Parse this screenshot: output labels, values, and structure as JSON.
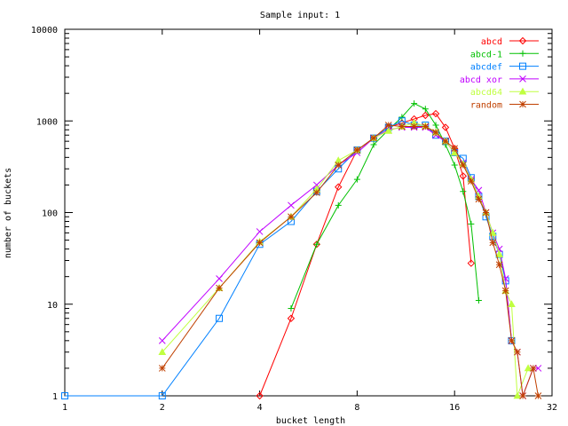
{
  "chart_data": {
    "type": "line",
    "title": "Sample input: 1",
    "xlabel": "bucket length",
    "ylabel": "number of buckets",
    "xscale": "log2",
    "yscale": "log10",
    "xlim": [
      1,
      32
    ],
    "ylim": [
      1,
      10000
    ],
    "xticks": [
      "1",
      "2",
      "4",
      "8",
      "16",
      "32"
    ],
    "yticks": [
      "1",
      "10",
      "100",
      "1000",
      "10000"
    ],
    "grid": false,
    "legend_position": "top-right",
    "series": [
      {
        "name": "abcd",
        "color": "#ff0000",
        "marker": "diamond",
        "x": [
          4,
          5,
          6,
          7,
          8,
          9,
          10,
          11,
          12,
          13,
          14,
          15,
          16,
          17,
          18
        ],
        "y": [
          1,
          7,
          45,
          190,
          480,
          650,
          850,
          950,
          1050,
          1150,
          1200,
          850,
          500,
          250,
          28
        ]
      },
      {
        "name": "abcd-1",
        "color": "#00c000",
        "marker": "plus",
        "x": [
          5,
          6,
          7,
          8,
          9,
          10,
          11,
          12,
          13,
          14,
          15,
          16,
          17,
          18,
          19
        ],
        "y": [
          9,
          45,
          120,
          230,
          550,
          800,
          1100,
          1550,
          1350,
          900,
          550,
          330,
          170,
          75,
          11
        ]
      },
      {
        "name": "abcdef",
        "color": "#0080ff",
        "marker": "square",
        "x": [
          1,
          2,
          3,
          4,
          5,
          6,
          7,
          8,
          9,
          10,
          11,
          12,
          13,
          14,
          15,
          16,
          17,
          18,
          19,
          20,
          21,
          22,
          23,
          24
        ],
        "y": [
          1,
          1,
          7,
          45,
          80,
          170,
          300,
          480,
          650,
          850,
          1000,
          900,
          900,
          700,
          600,
          450,
          390,
          240,
          150,
          90,
          55,
          35,
          18,
          4
        ]
      },
      {
        "name": "abcd xor",
        "color": "#c000ff",
        "marker": "cross",
        "x": [
          2,
          3,
          4,
          5,
          6,
          7,
          8,
          9,
          10,
          11,
          12,
          13,
          14,
          15,
          16,
          17,
          18,
          19,
          20,
          21,
          22,
          23,
          24,
          25,
          26,
          28,
          29
        ],
        "y": [
          4,
          19,
          62,
          120,
          200,
          330,
          450,
          650,
          800,
          850,
          850,
          850,
          700,
          600,
          450,
          350,
          230,
          175,
          100,
          60,
          40,
          19,
          4,
          3,
          1,
          2,
          2
        ]
      },
      {
        "name": "abcd64",
        "color": "#c0ff40",
        "marker": "triangle",
        "x": [
          2,
          3,
          4,
          5,
          6,
          7,
          8,
          9,
          10,
          11,
          12,
          13,
          14,
          15,
          16,
          17,
          18,
          19,
          20,
          21,
          22,
          23,
          24,
          25,
          27
        ],
        "y": [
          3,
          15,
          48,
          90,
          180,
          370,
          480,
          650,
          780,
          870,
          950,
          880,
          750,
          600,
          450,
          340,
          230,
          150,
          100,
          60,
          35,
          14,
          10,
          1,
          2
        ]
      },
      {
        "name": "random",
        "color": "#c04000",
        "marker": "asterisk",
        "x": [
          2,
          3,
          4,
          5,
          6,
          7,
          8,
          9,
          10,
          11,
          12,
          13,
          14,
          15,
          16,
          17,
          18,
          19,
          20,
          21,
          22,
          23,
          24,
          25,
          26,
          28,
          29
        ],
        "y": [
          2,
          15,
          47,
          90,
          165,
          330,
          480,
          650,
          900,
          870,
          870,
          870,
          750,
          600,
          500,
          330,
          220,
          140,
          100,
          47,
          27,
          14,
          4,
          3,
          1,
          2,
          1
        ]
      }
    ]
  }
}
